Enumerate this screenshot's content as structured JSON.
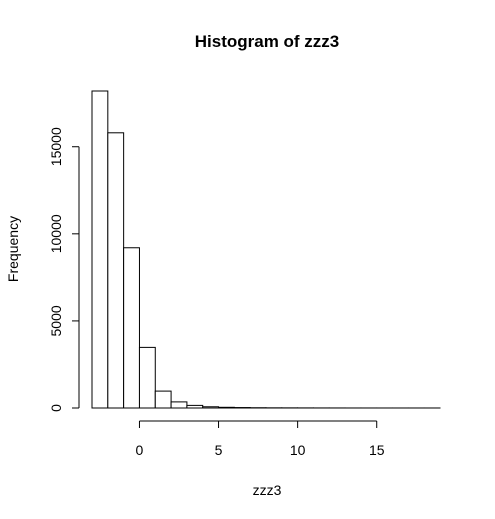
{
  "chart_data": {
    "type": "bar",
    "title": "Histogram of zzz3",
    "xlabel": "zzz3",
    "ylabel": "Frequency",
    "bin_edges": [
      -3,
      -2,
      -1,
      0,
      1,
      2,
      3,
      4,
      5,
      6,
      7,
      8,
      9,
      10,
      11,
      12,
      13,
      14,
      15,
      16,
      17,
      18,
      19
    ],
    "values": [
      18200,
      15800,
      9200,
      3480,
      970,
      350,
      150,
      70,
      40,
      25,
      15,
      10,
      8,
      6,
      4,
      3,
      2,
      2,
      1,
      1,
      1,
      1
    ],
    "xlim": [
      -3,
      19
    ],
    "ylim": [
      0,
      18200
    ],
    "x_ticks": [
      0,
      5,
      10,
      15
    ],
    "x_tick_labels": [
      "0",
      "5",
      "10",
      "15"
    ],
    "y_ticks": [
      0,
      5000,
      10000,
      15000
    ],
    "y_tick_labels": [
      "0",
      "5000",
      "10000",
      "15000"
    ],
    "grid": false,
    "legend": "none"
  }
}
